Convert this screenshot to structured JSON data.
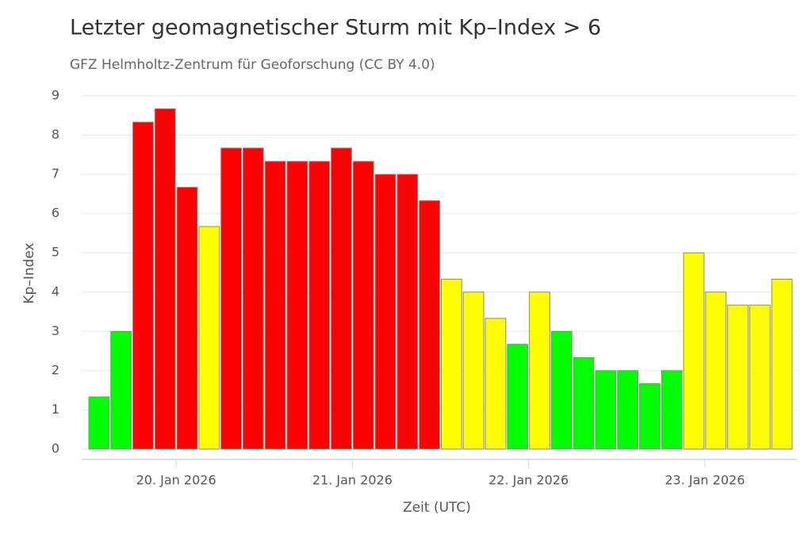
{
  "chart_data": {
    "type": "bar",
    "title": "Letzter geomagnetischer Sturm mit Kp–Index > 6",
    "subtitle": "GFZ Helmholtz-Zentrum für Geoforschung (CC BY 4.0)",
    "x_label": "Zeit (UTC)",
    "y_label": "Kp–Index",
    "categories": [
      null,
      null,
      null,
      null,
      null,
      null,
      null,
      null,
      null,
      null,
      null,
      null,
      null,
      null,
      null,
      null,
      null,
      null,
      null,
      null,
      null,
      null,
      null,
      null,
      null,
      null,
      null,
      null,
      null,
      null,
      null,
      null
    ],
    "values": [
      1.33,
      3.0,
      8.33,
      8.67,
      6.67,
      5.67,
      7.67,
      7.67,
      7.33,
      7.33,
      7.33,
      7.67,
      7.33,
      7.0,
      7.0,
      6.33,
      4.33,
      4.0,
      3.33,
      2.67,
      4.0,
      3.0,
      2.33,
      2.0,
      2.0,
      1.67,
      2.0,
      5.0,
      4.0,
      3.67,
      3.67,
      4.33
    ],
    "colors": [
      "#00ff00",
      "#00ff00",
      "#ff0000",
      "#ff0000",
      "#ff0000",
      "#ffff00",
      "#ff0000",
      "#ff0000",
      "#ff0000",
      "#ff0000",
      "#ff0000",
      "#ff0000",
      "#ff0000",
      "#ff0000",
      "#ff0000",
      "#ff0000",
      "#ffff00",
      "#ffff00",
      "#ffff00",
      "#00ff00",
      "#ffff00",
      "#00ff00",
      "#00ff00",
      "#00ff00",
      "#00ff00",
      "#00ff00",
      "#00ff00",
      "#ffff00",
      "#ffff00",
      "#ffff00",
      "#ffff00",
      "#ffff00"
    ],
    "xticks": [
      {
        "value": 4,
        "label": "20. Jan 2026"
      },
      {
        "value": 12,
        "label": "21. Jan 2026"
      },
      {
        "value": 20,
        "label": "22. Jan 2026"
      },
      {
        "value": 28,
        "label": "23. Jan 2026"
      }
    ],
    "ylim": [
      0,
      9
    ],
    "yticks": [
      0,
      1,
      2,
      3,
      4,
      5,
      6,
      7,
      8,
      9
    ],
    "grid": true
  }
}
